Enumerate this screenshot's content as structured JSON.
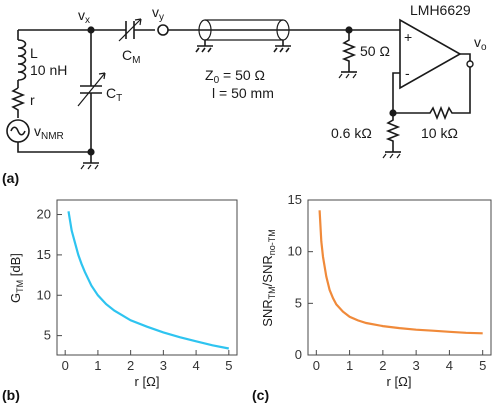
{
  "circuit": {
    "panel_label": "(a)",
    "node_vx": "v",
    "node_vx_sub": "x",
    "node_vy": "v",
    "node_vy_sub": "y",
    "inductor_name": "L",
    "inductor_value": "10 nH",
    "resistor_r": "r",
    "source_label": "v",
    "source_sub": "NMR",
    "cap_m": "C",
    "cap_m_sub": "M",
    "cap_t": "C",
    "cap_t_sub": "T",
    "z0_label": "Z",
    "z0_sub": "0",
    "z0_value": " = 50 Ω",
    "line_length": "l = 50 mm",
    "term_resistor": "50 Ω",
    "amp_name": "LMH6629",
    "plus_sign": "+",
    "minus_sign": "-",
    "output": "v",
    "output_sub": "o",
    "r_ground": "0.6 kΩ",
    "r_feedback": "10 kΩ"
  },
  "panels": {
    "b": {
      "label": "(b)"
    },
    "c": {
      "label": "(c)"
    }
  },
  "chart_data": [
    {
      "type": "line",
      "xlabel": "r [Ω]",
      "ylabel_main": "G",
      "ylabel_sub": "TM",
      "ylabel_unit": " [dB]",
      "xlim": [
        -0.25,
        5.25
      ],
      "ylim": [
        2.6,
        21.8
      ],
      "xticks": [
        0,
        1,
        2,
        3,
        4,
        5
      ],
      "yticks": [
        5,
        10,
        15,
        20
      ],
      "color": "#2ec4f0",
      "series": [
        {
          "x": [
            0.1,
            0.2,
            0.3,
            0.4,
            0.5,
            0.6,
            0.8,
            1.0,
            1.25,
            1.5,
            1.75,
            2.0,
            2.5,
            3.0,
            3.5,
            4.0,
            4.5,
            5.0
          ],
          "y": [
            20.4,
            18.0,
            16.5,
            15.0,
            13.9,
            12.9,
            11.2,
            10.0,
            8.9,
            8.1,
            7.5,
            6.9,
            6.1,
            5.4,
            4.8,
            4.3,
            3.8,
            3.4
          ]
        }
      ]
    },
    {
      "type": "line",
      "xlabel": "r [Ω]",
      "ylabel_main": "SNR",
      "ylabel_sub1": "TM",
      "ylabel_mid": "/SNR",
      "ylabel_sub2": "no-TM",
      "xlim": [
        -0.25,
        5.25
      ],
      "ylim": [
        0,
        15
      ],
      "xticks": [
        0,
        1,
        2,
        3,
        4,
        5
      ],
      "yticks": [
        0,
        5,
        10,
        15
      ],
      "color": "#f08a3a",
      "series": [
        {
          "x": [
            0.1,
            0.15,
            0.2,
            0.3,
            0.4,
            0.5,
            0.6,
            0.8,
            1.0,
            1.25,
            1.5,
            2.0,
            2.5,
            3.0,
            3.5,
            4.0,
            4.5,
            5.0
          ],
          "y": [
            14.0,
            11.0,
            9.5,
            7.6,
            6.3,
            5.5,
            4.9,
            4.2,
            3.7,
            3.35,
            3.1,
            2.8,
            2.6,
            2.45,
            2.35,
            2.25,
            2.15,
            2.1
          ]
        }
      ]
    }
  ]
}
